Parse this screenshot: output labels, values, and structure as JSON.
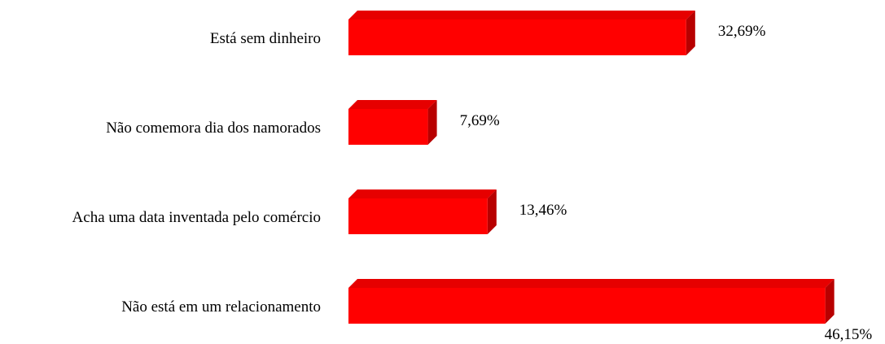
{
  "chart_data": {
    "type": "bar",
    "orientation": "horizontal",
    "three_d": true,
    "categories": [
      "Está sem dinheiro",
      "Não comemora dia dos namorados",
      "Acha uma data inventada pelo comércio",
      "Não está em um relacionamento"
    ],
    "values": [
      32.69,
      7.69,
      13.46,
      46.15
    ],
    "value_labels": [
      "32,69%",
      "7,69%",
      "13,46%",
      "46,15%"
    ],
    "unit": "%",
    "xlim": [
      0,
      46.15
    ],
    "grid": false,
    "legend": "none"
  },
  "colors": {
    "bar_front": "#ff0000",
    "bar_top": "#e60000",
    "bar_side": "#b80000",
    "text": "#000000"
  }
}
